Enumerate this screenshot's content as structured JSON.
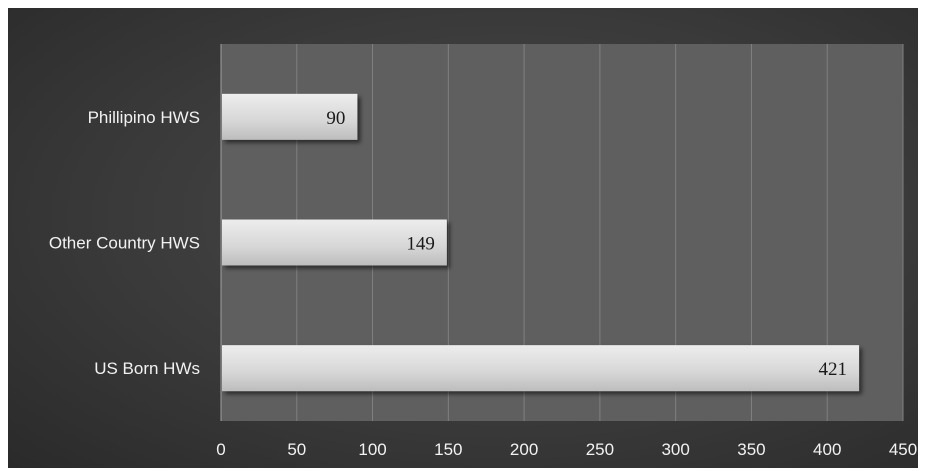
{
  "chart_data": {
    "type": "bar",
    "orientation": "horizontal",
    "categories": [
      "US Born HWs",
      "Other Country HWS",
      "Phillipino HWS"
    ],
    "values": [
      421,
      149,
      90
    ],
    "data_labels": [
      "421",
      "149",
      "90"
    ],
    "title": "",
    "xlabel": "",
    "ylabel": "",
    "xlim": [
      0,
      450
    ],
    "xticks": [
      0,
      50,
      100,
      150,
      200,
      250,
      300,
      350,
      400,
      450
    ],
    "xtick_labels": [
      "0",
      "50",
      "100",
      "150",
      "200",
      "250",
      "300",
      "350",
      "400",
      "450"
    ],
    "grid": true,
    "legend": "none",
    "colors": {
      "background": "#3c3c3c",
      "plot_area": "#5f5f5f",
      "bar": "#d9d9d9",
      "gridline": "#808080",
      "text": "#f2f2f2"
    }
  }
}
